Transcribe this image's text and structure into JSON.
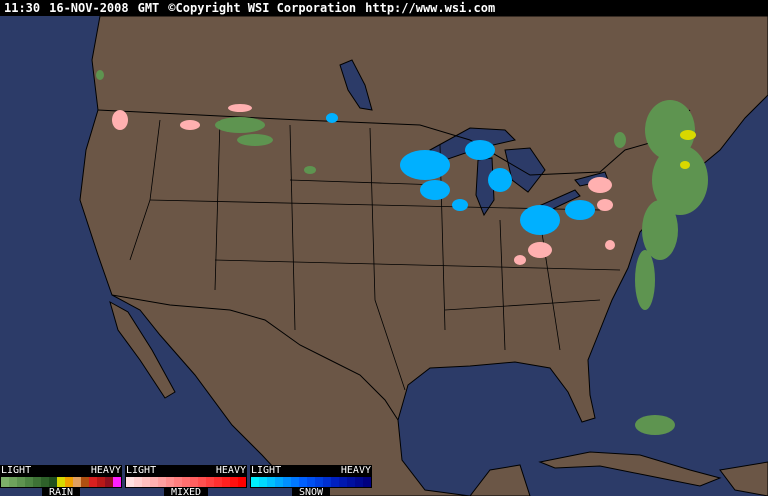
{
  "header": {
    "time": "11:30",
    "date": "16-NOV-2008",
    "zone": "GMT",
    "copyright": "©Copyright WSI Corporation",
    "url": "http://www.wsi.com"
  },
  "colors": {
    "ocean": "#2c3b68",
    "land": "#6b5646",
    "border": "#000000"
  },
  "legend": [
    {
      "name": "RAIN",
      "light": "LIGHT",
      "heavy": "HEAVY",
      "colors": [
        "#7db06a",
        "#6ea35c",
        "#5e9450",
        "#4d8443",
        "#3e7236",
        "#2e612a",
        "#20501e",
        "#d8d800",
        "#f0a000",
        "#e0a060",
        "#b05010",
        "#d82020",
        "#b81818",
        "#901020",
        "#ff20ff"
      ]
    },
    {
      "name": "MIXED",
      "light": "LIGHT",
      "heavy": "HEAVY",
      "colors": [
        "#ffe0e0",
        "#ffd0d0",
        "#ffc0c0",
        "#ffb0b0",
        "#ffa0a0",
        "#ff9090",
        "#ff8080",
        "#ff7070",
        "#ff6060",
        "#ff5050",
        "#ff4040",
        "#ff3030",
        "#ff2020",
        "#ff1010",
        "#ff0000"
      ]
    },
    {
      "name": "SNOW",
      "light": "LIGHT",
      "heavy": "HEAVY",
      "colors": [
        "#00f0ff",
        "#00d8ff",
        "#00c0ff",
        "#00a8ff",
        "#0090ff",
        "#0078ff",
        "#0060ff",
        "#0050f0",
        "#0040e0",
        "#0030d0",
        "#0020c0",
        "#0018b0",
        "#0010a0",
        "#000890",
        "#000080"
      ]
    }
  ]
}
